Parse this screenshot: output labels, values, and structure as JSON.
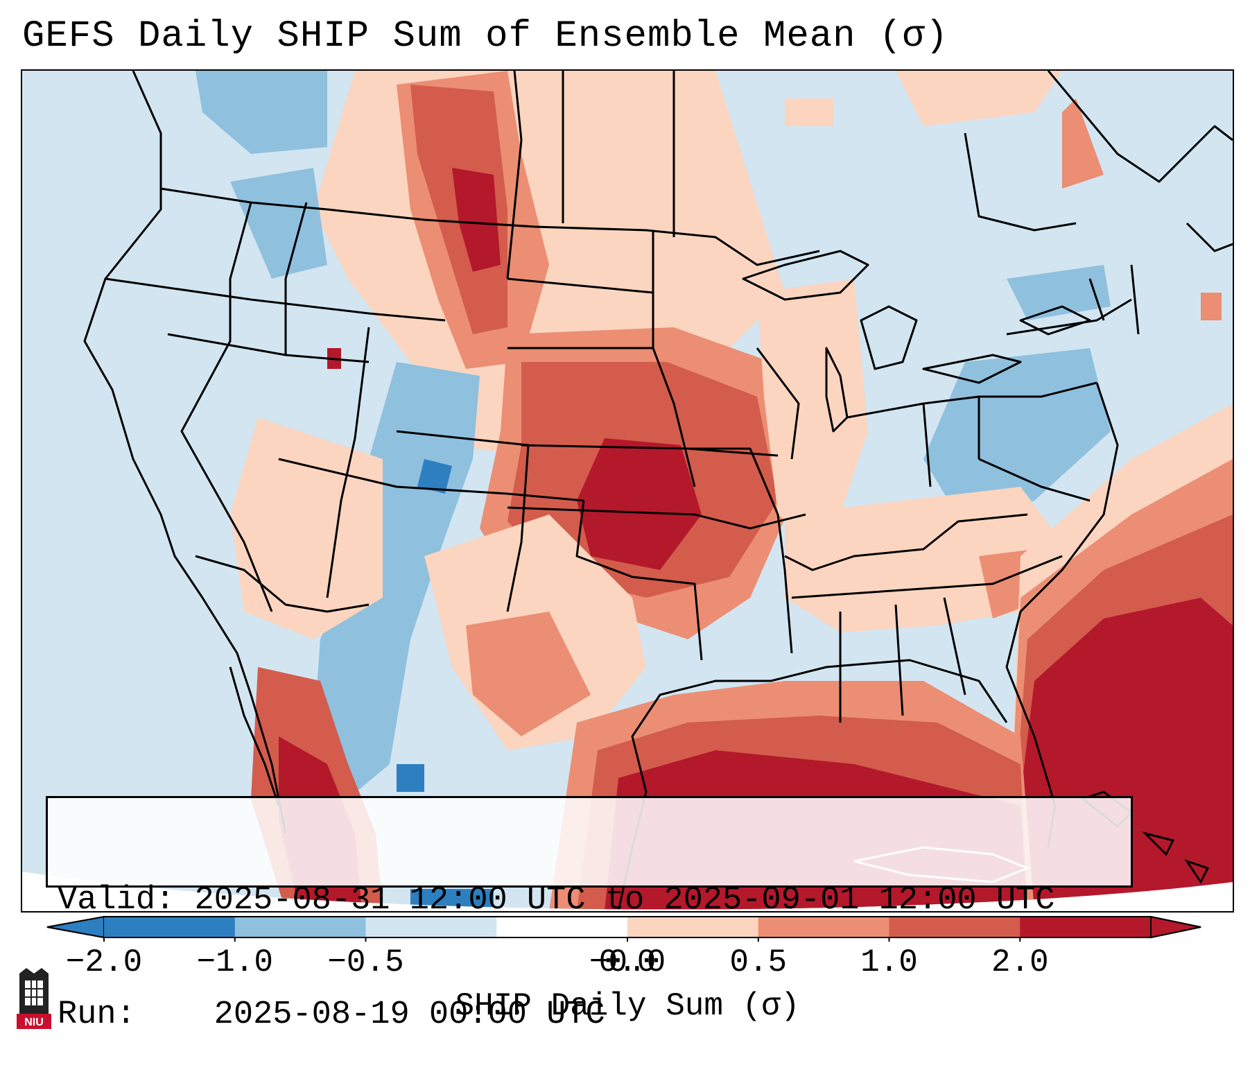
{
  "title": "GEFS Daily SHIP Sum of Ensemble Mean (σ)",
  "info": {
    "valid_label": "Valid:",
    "valid_value": "2025-08-31 12:00 UTC to 2025-09-01 12:00 UTC",
    "run_label": "Run:",
    "run_value": "2025-08-19 00:00 UTC"
  },
  "colorbar": {
    "label": "SHIP Daily Sum (σ)",
    "ticks": [
      "−2.0",
      "−1.0",
      "−0.5",
      "−0.0",
      "0.0",
      "0.5",
      "1.0",
      "2.0"
    ],
    "colors": [
      "#2d7fc0",
      "#8fc0de",
      "#d2e5f1",
      "#ffffff",
      "#fbd5c0",
      "#eb8e74",
      "#d35c4c",
      "#b4182b"
    ]
  },
  "logo_text": "NIU",
  "map": {
    "region": "Continental United States",
    "palette": {
      "dark_red": "#b4182b",
      "red": "#d35c4c",
      "salmon": "#eb8e74",
      "light_salmon": "#fbd5c0",
      "light_blue": "#d2e5f1",
      "blue": "#8fc0de",
      "dark_blue": "#2d7fc0"
    }
  }
}
